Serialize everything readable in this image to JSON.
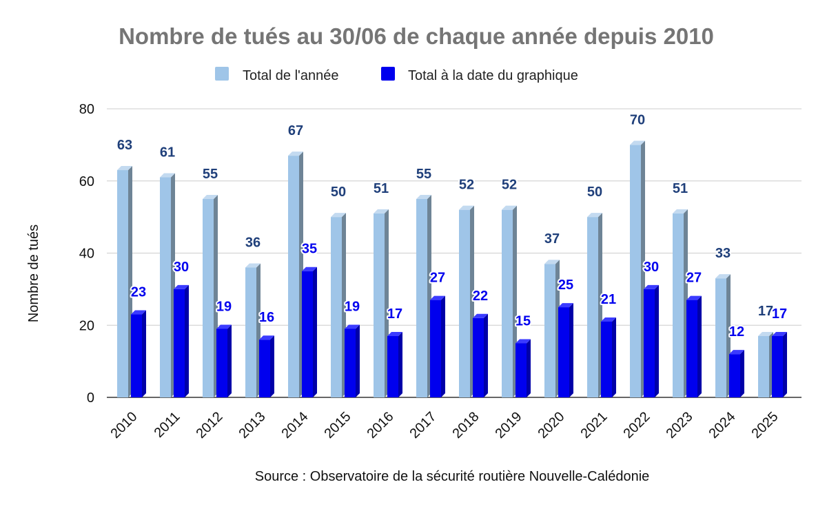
{
  "chart_data": {
    "type": "bar",
    "title": "Nombre de tués au 30/06 de chaque année depuis 2010",
    "ylabel": "Nombre de tués",
    "xlabel": "",
    "source": "Source : Observatoire de la sécurité routière Nouvelle-Calédonie",
    "ylim": [
      0,
      80
    ],
    "yticks": [
      0,
      20,
      40,
      60,
      80
    ],
    "grid": true,
    "legend_position": "top",
    "categories": [
      "2010",
      "2011",
      "2012",
      "2013",
      "2014",
      "2015",
      "2016",
      "2017",
      "2018",
      "2019",
      "2020",
      "2021",
      "2022",
      "2023",
      "2024",
      "2025"
    ],
    "series": [
      {
        "name": "Total de l'année",
        "color": "#9fc5e8",
        "label_color": "#1f3f7a",
        "values": [
          63,
          61,
          55,
          36,
          67,
          50,
          51,
          55,
          52,
          52,
          37,
          50,
          70,
          51,
          33,
          17
        ]
      },
      {
        "name": "Total à la date du graphique",
        "color": "#0000ee",
        "label_color": "#0000ee",
        "values": [
          23,
          30,
          19,
          16,
          35,
          19,
          17,
          27,
          22,
          15,
          25,
          21,
          30,
          27,
          12,
          17
        ]
      }
    ]
  }
}
